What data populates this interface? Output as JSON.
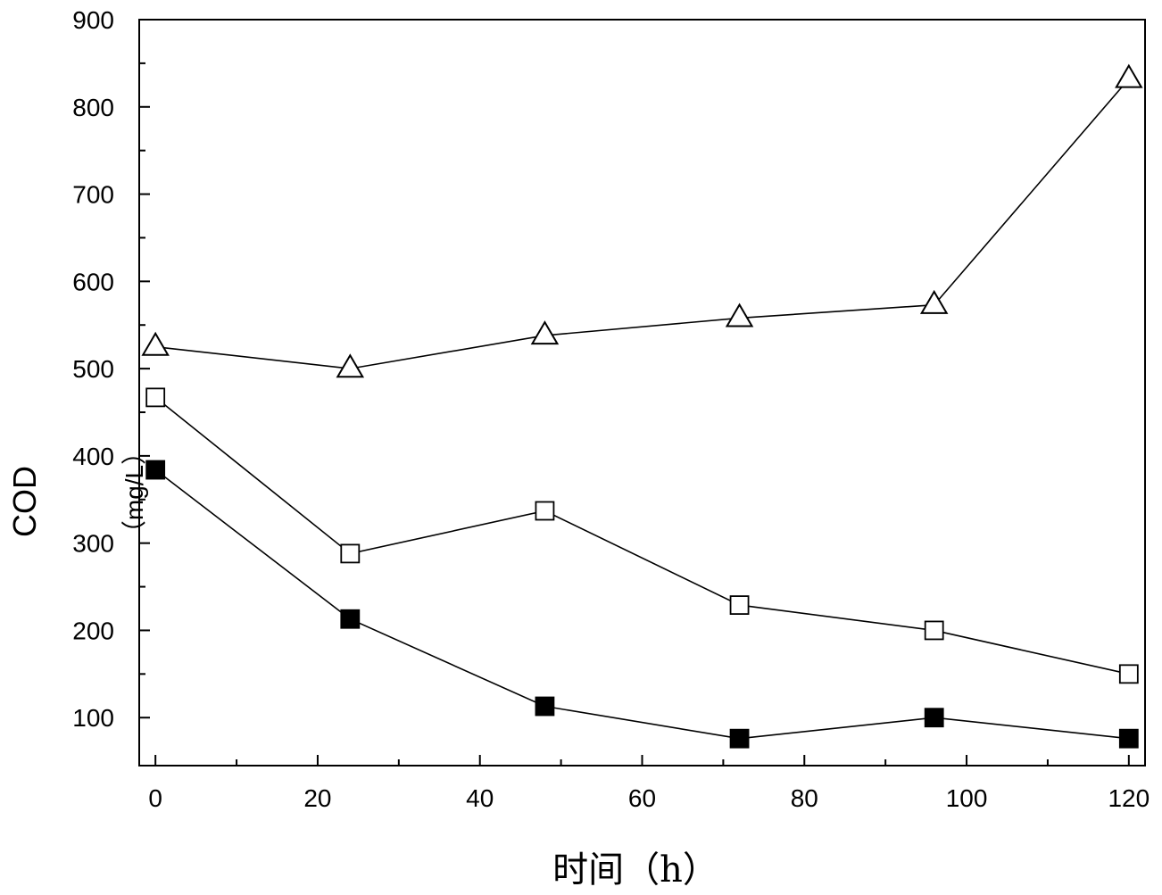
{
  "chart_data": {
    "type": "line",
    "title": "",
    "xlabel": "时间（h）",
    "ylabel": "COD",
    "ylabel_unit": "（mg/L）",
    "xlim": [
      -2,
      122
    ],
    "ylim": [
      45,
      900
    ],
    "x_ticks": [
      0,
      20,
      40,
      60,
      80,
      100,
      120
    ],
    "y_ticks": [
      100,
      200,
      300,
      400,
      500,
      600,
      700,
      800,
      900
    ],
    "x_tick_labels": [
      "0",
      "20",
      "40",
      "60",
      "80",
      "100",
      "120"
    ],
    "y_tick_labels": [
      "100",
      "200",
      "300",
      "400",
      "500",
      "600",
      "700",
      "800",
      "900"
    ],
    "grid": false,
    "legend": "none",
    "x": [
      0,
      24,
      48,
      72,
      96,
      120
    ],
    "series": [
      {
        "marker": "triangle-open",
        "values": [
          525,
          500,
          538,
          558,
          573,
          832
        ]
      },
      {
        "marker": "square-open",
        "values": [
          467,
          288,
          337,
          229,
          200,
          150
        ]
      },
      {
        "marker": "square-filled",
        "values": [
          384,
          213,
          113,
          76,
          100,
          76
        ]
      }
    ],
    "colors": {
      "line": "#000000",
      "marker_fill_open": "#ffffff",
      "marker_fill_solid": "#000000"
    }
  }
}
